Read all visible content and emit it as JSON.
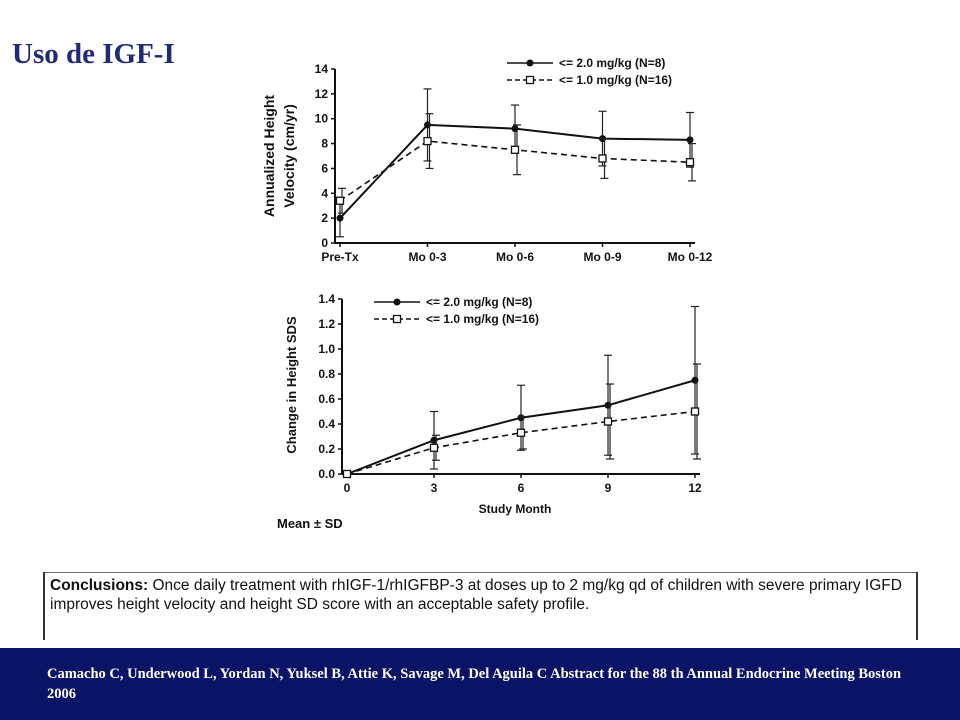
{
  "title": "Uso de IGF-I",
  "chart_data": [
    {
      "type": "line",
      "ylabel_line1": "Annualized Height",
      "ylabel_line2": "Velocity (cm/yr)",
      "categories": [
        "Pre-Tx",
        "Mo 0-3",
        "Mo 0-6",
        "Mo 0-9",
        "Mo 0-12"
      ],
      "ylim": [
        0,
        14
      ],
      "yticks": [
        0,
        2,
        4,
        6,
        8,
        10,
        12,
        14
      ],
      "legend_position": "top-right",
      "series": [
        {
          "name": "<= 2.0 mg/kg (N=8)",
          "style": "solid",
          "marker": "filled-circle",
          "values": [
            2.0,
            9.5,
            9.2,
            8.4,
            8.3
          ],
          "error": [
            1.5,
            2.9,
            1.9,
            2.2,
            2.2
          ]
        },
        {
          "name": "<= 1.0 mg/kg (N=16)",
          "style": "dashed",
          "marker": "open-square",
          "values": [
            3.4,
            8.2,
            7.5,
            6.8,
            6.5
          ],
          "error": [
            1.0,
            2.2,
            2.0,
            1.6,
            1.5
          ]
        }
      ]
    },
    {
      "type": "line",
      "xlabel": "Study Month",
      "ylabel": "Change in Height SDS",
      "x": [
        0,
        3,
        6,
        9,
        12
      ],
      "xticks": [
        "0",
        "3",
        "6",
        "9",
        "12"
      ],
      "ylim": [
        0,
        1.4
      ],
      "yticks": [
        "0.0",
        "0.2",
        "0.4",
        "0.6",
        "0.8",
        "1.0",
        "1.2",
        "1.4"
      ],
      "legend_position": "top-left",
      "series": [
        {
          "name": "<= 2.0 mg/kg (N=8)",
          "style": "solid",
          "marker": "filled-circle",
          "values": [
            0.0,
            0.27,
            0.45,
            0.55,
            0.75
          ],
          "error": [
            0,
            0.23,
            0.26,
            0.4,
            0.59
          ]
        },
        {
          "name": "<= 1.0 mg/kg (N=16)",
          "style": "dashed",
          "marker": "open-square",
          "values": [
            0.0,
            0.21,
            0.33,
            0.42,
            0.5
          ],
          "error": [
            0,
            0.1,
            0.13,
            0.3,
            0.38
          ]
        }
      ]
    }
  ],
  "mean_sd_label": "Mean ± SD",
  "conclusions": {
    "label": "Conclusions:",
    "text": "Once daily treatment with rhIGF-1/rhIGFBP-3 at doses up to 2 mg/kg qd of children with severe primary IGFD improves height velocity and height SD score with an acceptable safety profile."
  },
  "citation": "Camacho C, Underwood L, Yordan N, Yuksel B, Attie K, Savage M, Del Aguila C Abstract for  the 88 th Annual Endocrine Meeting Boston 2006"
}
